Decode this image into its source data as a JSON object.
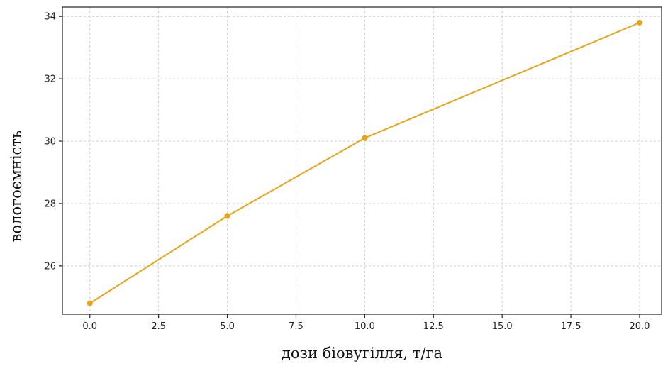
{
  "chart_data": {
    "type": "line",
    "title": "",
    "xlabel": "дози біовугілля, т/га",
    "ylabel": "вологоємність",
    "xlim": [
      -1,
      20.8
    ],
    "ylim": [
      24.45,
      34.3
    ],
    "xticks": [
      0.0,
      2.5,
      5.0,
      7.5,
      10.0,
      12.5,
      15.0,
      17.5,
      20.0
    ],
    "xtick_labels": [
      "0.0",
      "2.5",
      "5.0",
      "7.5",
      "10.0",
      "12.5",
      "15.0",
      "17.5",
      "20.0"
    ],
    "yticks": [
      26,
      28,
      30,
      32,
      34
    ],
    "ytick_labels": [
      "26",
      "28",
      "30",
      "32",
      "34"
    ],
    "grid": true,
    "legend": "none",
    "series": [
      {
        "color": "#e8a317",
        "marker": "circle",
        "x": [
          0,
          5,
          10,
          20
        ],
        "y": [
          24.8,
          27.6,
          30.1,
          33.8
        ]
      }
    ]
  }
}
